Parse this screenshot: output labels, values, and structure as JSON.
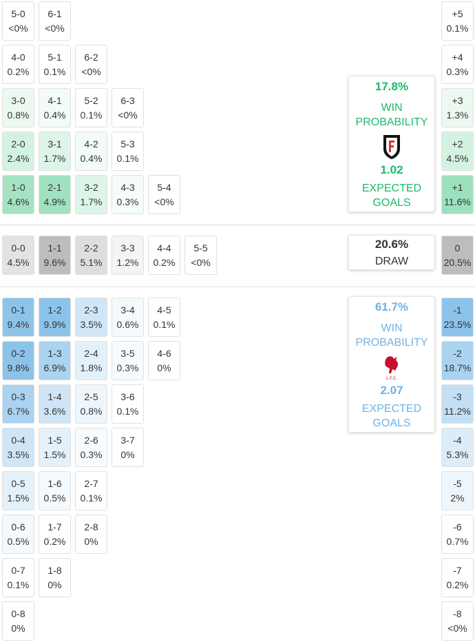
{
  "home": {
    "rows": [
      {
        "cells": [
          {
            "score": "5-0",
            "prob": "<0%",
            "color": "#ffffff"
          },
          {
            "score": "6-1",
            "prob": "<0%",
            "color": "#ffffff"
          }
        ],
        "margin": {
          "label": "+5",
          "prob": "0.1%",
          "color": "#ffffff"
        }
      },
      {
        "cells": [
          {
            "score": "4-0",
            "prob": "0.2%",
            "color": "#ffffff"
          },
          {
            "score": "5-1",
            "prob": "0.1%",
            "color": "#ffffff"
          },
          {
            "score": "6-2",
            "prob": "<0%",
            "color": "#ffffff"
          }
        ],
        "margin": {
          "label": "+4",
          "prob": "0.3%",
          "color": "#ffffff"
        }
      },
      {
        "cells": [
          {
            "score": "3-0",
            "prob": "0.8%",
            "color": "#ecf9f1"
          },
          {
            "score": "4-1",
            "prob": "0.4%",
            "color": "#f2fbf6"
          },
          {
            "score": "5-2",
            "prob": "0.1%",
            "color": "#ffffff"
          },
          {
            "score": "6-3",
            "prob": "<0%",
            "color": "#ffffff"
          }
        ],
        "margin": {
          "label": "+3",
          "prob": "1.3%",
          "color": "#ecf9f1"
        }
      },
      {
        "cells": [
          {
            "score": "2-0",
            "prob": "2.4%",
            "color": "#d3f2e1"
          },
          {
            "score": "3-1",
            "prob": "1.7%",
            "color": "#dcf5e8"
          },
          {
            "score": "4-2",
            "prob": "0.4%",
            "color": "#f2fbf6"
          },
          {
            "score": "5-3",
            "prob": "0.1%",
            "color": "#ffffff"
          }
        ],
        "margin": {
          "label": "+2",
          "prob": "4.5%",
          "color": "#d3f2e1"
        }
      },
      {
        "cells": [
          {
            "score": "1-0",
            "prob": "4.6%",
            "color": "#a6e3c3"
          },
          {
            "score": "2-1",
            "prob": "4.9%",
            "color": "#a0e1bf"
          },
          {
            "score": "3-2",
            "prob": "1.7%",
            "color": "#dcf5e8"
          },
          {
            "score": "4-3",
            "prob": "0.3%",
            "color": "#f6fcf9"
          },
          {
            "score": "5-4",
            "prob": "<0%",
            "color": "#ffffff"
          }
        ],
        "margin": {
          "label": "+1",
          "prob": "11.6%",
          "color": "#9de0bd"
        }
      }
    ],
    "summary": {
      "win_prob": "17.8%",
      "win_label": "WIN PROBABILITY",
      "xg": "1.02",
      "xg_label": "EXPECTED GOALS",
      "color": "#1db96a"
    }
  },
  "draw": {
    "rows": [
      {
        "cells": [
          {
            "score": "0-0",
            "prob": "4.5%",
            "color": "#e3e3e3"
          },
          {
            "score": "1-1",
            "prob": "9.6%",
            "color": "#bdbdbd"
          },
          {
            "score": "2-2",
            "prob": "5.1%",
            "color": "#dedede"
          },
          {
            "score": "3-3",
            "prob": "1.2%",
            "color": "#f4f4f4"
          },
          {
            "score": "4-4",
            "prob": "0.2%",
            "color": "#ffffff"
          },
          {
            "score": "5-5",
            "prob": "<0%",
            "color": "#ffffff"
          }
        ],
        "margin": {
          "label": "0",
          "prob": "20.5%",
          "color": "#bdbdbd"
        }
      }
    ],
    "summary": {
      "prob": "20.6%",
      "label": "DRAW"
    }
  },
  "away": {
    "rows": [
      {
        "cells": [
          {
            "score": "0-1",
            "prob": "9.4%",
            "color": "#8ec4ea"
          },
          {
            "score": "1-2",
            "prob": "9.9%",
            "color": "#8cc3ea"
          },
          {
            "score": "2-3",
            "prob": "3.5%",
            "color": "#d0e6f7"
          },
          {
            "score": "3-4",
            "prob": "0.6%",
            "color": "#f3f9fd"
          },
          {
            "score": "4-5",
            "prob": "0.1%",
            "color": "#ffffff"
          }
        ],
        "margin": {
          "label": "-1",
          "prob": "23.5%",
          "color": "#8cc3ea"
        }
      },
      {
        "cells": [
          {
            "score": "0-2",
            "prob": "9.8%",
            "color": "#8cc3ea"
          },
          {
            "score": "1-3",
            "prob": "6.9%",
            "color": "#a9d3f0"
          },
          {
            "score": "2-4",
            "prob": "1.8%",
            "color": "#e2f0fa"
          },
          {
            "score": "3-5",
            "prob": "0.3%",
            "color": "#f8fbfe"
          },
          {
            "score": "4-6",
            "prob": "0%",
            "color": "#ffffff"
          }
        ],
        "margin": {
          "label": "-2",
          "prob": "18.7%",
          "color": "#a9d3f0"
        }
      },
      {
        "cells": [
          {
            "score": "0-3",
            "prob": "6.7%",
            "color": "#a9d3f0"
          },
          {
            "score": "1-4",
            "prob": "3.6%",
            "color": "#cfe5f6"
          },
          {
            "score": "2-5",
            "prob": "0.8%",
            "color": "#eef6fc"
          },
          {
            "score": "3-6",
            "prob": "0.1%",
            "color": "#ffffff"
          }
        ],
        "margin": {
          "label": "-3",
          "prob": "11.2%",
          "color": "#c2dff4"
        }
      },
      {
        "cells": [
          {
            "score": "0-4",
            "prob": "3.5%",
            "color": "#d0e6f7"
          },
          {
            "score": "1-5",
            "prob": "1.5%",
            "color": "#e4f1fb"
          },
          {
            "score": "2-6",
            "prob": "0.3%",
            "color": "#f8fbfe"
          },
          {
            "score": "3-7",
            "prob": "0%",
            "color": "#ffffff"
          }
        ],
        "margin": {
          "label": "-4",
          "prob": "5.3%",
          "color": "#dcecf8"
        }
      },
      {
        "cells": [
          {
            "score": "0-5",
            "prob": "1.5%",
            "color": "#e4f1fb"
          },
          {
            "score": "1-6",
            "prob": "0.5%",
            "color": "#f3f9fd"
          },
          {
            "score": "2-7",
            "prob": "0.1%",
            "color": "#ffffff"
          }
        ],
        "margin": {
          "label": "-5",
          "prob": "2%",
          "color": "#eef6fc"
        }
      },
      {
        "cells": [
          {
            "score": "0-6",
            "prob": "0.5%",
            "color": "#f3f9fd"
          },
          {
            "score": "1-7",
            "prob": "0.2%",
            "color": "#ffffff"
          },
          {
            "score": "2-8",
            "prob": "0%",
            "color": "#ffffff"
          }
        ],
        "margin": {
          "label": "-6",
          "prob": "0.7%",
          "color": "#ffffff"
        }
      },
      {
        "cells": [
          {
            "score": "0-7",
            "prob": "0.1%",
            "color": "#ffffff"
          },
          {
            "score": "1-8",
            "prob": "0%",
            "color": "#ffffff"
          }
        ],
        "margin": {
          "label": "-7",
          "prob": "0.2%",
          "color": "#ffffff"
        }
      },
      {
        "cells": [
          {
            "score": "0-8",
            "prob": "0%",
            "color": "#ffffff"
          }
        ],
        "margin": {
          "label": "-8",
          "prob": "<0%",
          "color": "#ffffff"
        }
      }
    ],
    "summary": {
      "win_prob": "61.7%",
      "win_label": "WIN PROBABILITY",
      "xg": "2.07",
      "xg_label": "EXPECTED GOALS",
      "color": "#6fb3e3"
    }
  }
}
